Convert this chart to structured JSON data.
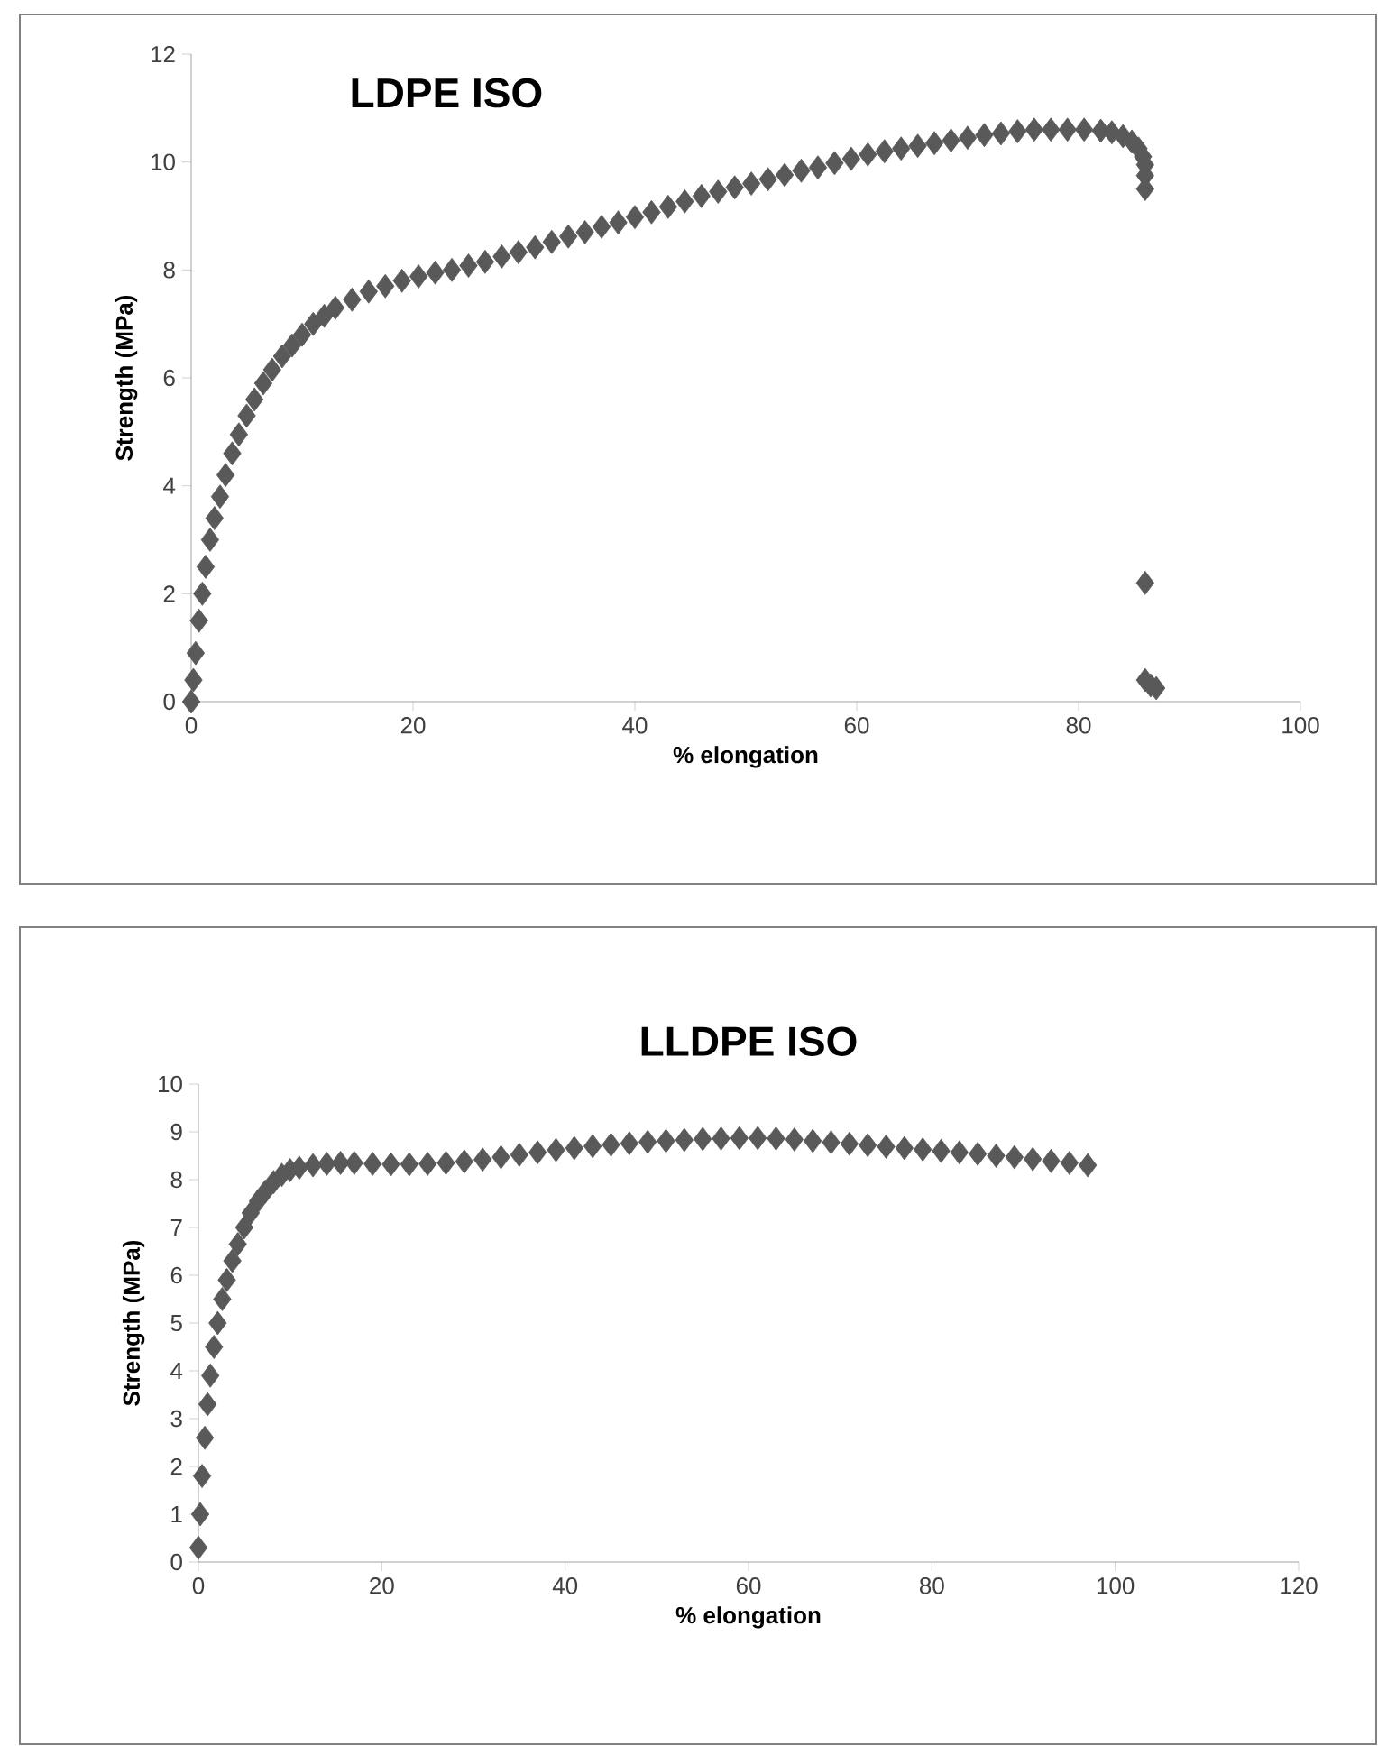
{
  "chart_data": [
    {
      "type": "scatter",
      "title": "LDPE ISO",
      "xlabel": "% elongation",
      "ylabel": "Strength (MPa)",
      "marker": "diamond",
      "xlim": [
        0,
        100
      ],
      "xticks": [
        0,
        20,
        40,
        60,
        80,
        100
      ],
      "ylim": [
        0,
        12
      ],
      "yticks": [
        0,
        2,
        4,
        6,
        8,
        10,
        12
      ],
      "series": [
        {
          "color": "#595959",
          "x": [
            0,
            0.2,
            0.4,
            0.7,
            1,
            1.3,
            1.7,
            2.1,
            2.6,
            3.1,
            3.7,
            4.3,
            5,
            5.7,
            6.5,
            7.3,
            8.2,
            9.1,
            10,
            11,
            12,
            13,
            14.5,
            16,
            17.5,
            19,
            20.5,
            22,
            23.5,
            25,
            26.5,
            28,
            29.5,
            31,
            32.5,
            34,
            35.5,
            37,
            38.5,
            40,
            41.5,
            43,
            44.5,
            46,
            47.5,
            49,
            50.5,
            52,
            53.5,
            55,
            56.5,
            58,
            59.5,
            61,
            62.5,
            64,
            65.5,
            67,
            68.5,
            70,
            71.5,
            73,
            74.5,
            76,
            77.5,
            79,
            80.5,
            82,
            83,
            84,
            84.8,
            85.4,
            85.8,
            86,
            86,
            86,
            86,
            86,
            86.5,
            87
          ],
          "values": [
            0,
            0.4,
            0.9,
            1.5,
            2.0,
            2.5,
            3.0,
            3.4,
            3.8,
            4.2,
            4.6,
            4.95,
            5.3,
            5.6,
            5.9,
            6.15,
            6.4,
            6.6,
            6.8,
            7.0,
            7.15,
            7.3,
            7.45,
            7.6,
            7.7,
            7.8,
            7.88,
            7.95,
            8.0,
            8.08,
            8.15,
            8.25,
            8.33,
            8.42,
            8.52,
            8.62,
            8.7,
            8.8,
            8.88,
            8.98,
            9.07,
            9.17,
            9.27,
            9.37,
            9.45,
            9.53,
            9.6,
            9.68,
            9.76,
            9.84,
            9.9,
            9.98,
            10.06,
            10.14,
            10.2,
            10.25,
            10.3,
            10.35,
            10.4,
            10.45,
            10.5,
            10.53,
            10.57,
            10.6,
            10.6,
            10.6,
            10.6,
            10.58,
            10.55,
            10.48,
            10.38,
            10.25,
            10.1,
            9.95,
            9.75,
            9.5,
            2.2,
            0.4,
            0.3,
            0.25
          ]
        }
      ]
    },
    {
      "type": "scatter",
      "title": "LLDPE ISO",
      "xlabel": "% elongation",
      "ylabel": "Strength (MPa)",
      "marker": "diamond",
      "xlim": [
        0,
        120
      ],
      "xticks": [
        0,
        20,
        40,
        60,
        80,
        100,
        120
      ],
      "ylim": [
        0,
        10
      ],
      "yticks": [
        0,
        1,
        2,
        3,
        4,
        5,
        6,
        7,
        8,
        9,
        10
      ],
      "series": [
        {
          "color": "#595959",
          "x": [
            0,
            0.2,
            0.4,
            0.7,
            1,
            1.3,
            1.7,
            2.1,
            2.6,
            3.1,
            3.7,
            4.3,
            5,
            5.7,
            6.5,
            7.3,
            8.2,
            9.1,
            10,
            11,
            12.5,
            14,
            15.5,
            17,
            19,
            21,
            23,
            25,
            27,
            29,
            31,
            33,
            35,
            37,
            39,
            41,
            43,
            45,
            47,
            49,
            51,
            53,
            55,
            57,
            59,
            61,
            63,
            65,
            67,
            69,
            71,
            73,
            75,
            77,
            79,
            81,
            83,
            85,
            87,
            89,
            91,
            93,
            95,
            97
          ],
          "values": [
            0.3,
            1,
            1.8,
            2.6,
            3.3,
            3.9,
            4.5,
            5.0,
            5.5,
            5.9,
            6.3,
            6.65,
            7.0,
            7.3,
            7.55,
            7.75,
            7.95,
            8.1,
            8.2,
            8.25,
            8.3,
            8.33,
            8.35,
            8.35,
            8.33,
            8.32,
            8.32,
            8.33,
            8.35,
            8.38,
            8.42,
            8.47,
            8.52,
            8.57,
            8.62,
            8.66,
            8.7,
            8.73,
            8.76,
            8.79,
            8.81,
            8.83,
            8.85,
            8.86,
            8.87,
            8.87,
            8.86,
            8.84,
            8.81,
            8.78,
            8.75,
            8.72,
            8.69,
            8.66,
            8.63,
            8.6,
            8.57,
            8.54,
            8.5,
            8.47,
            8.43,
            8.39,
            8.35,
            8.3
          ]
        }
      ]
    }
  ]
}
